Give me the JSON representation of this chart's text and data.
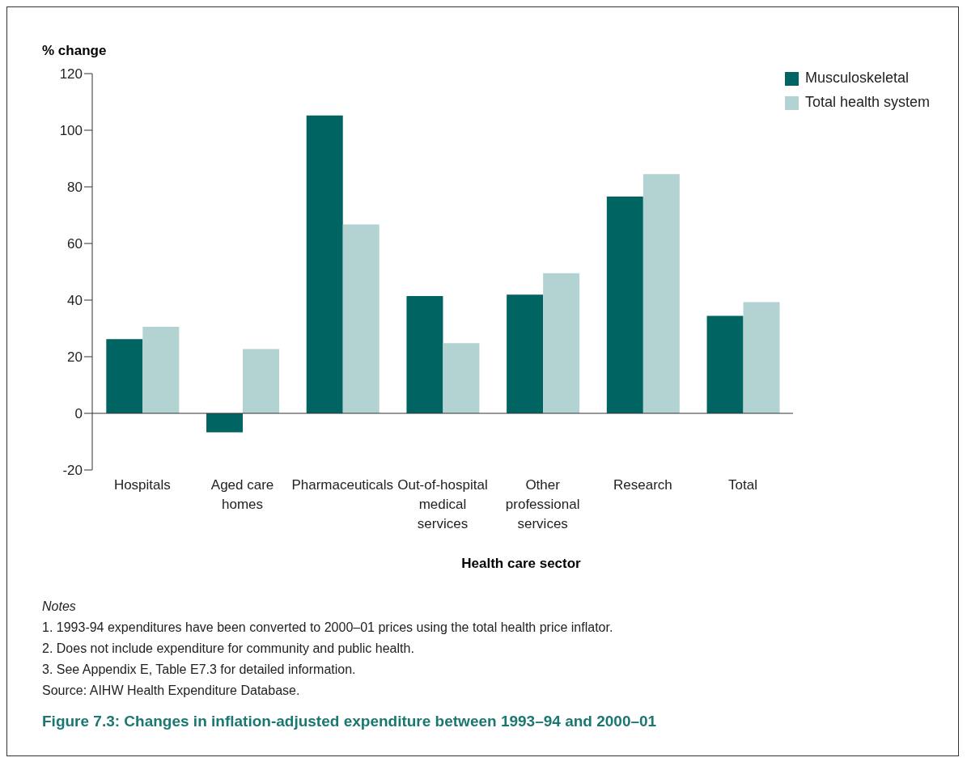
{
  "chart_data": {
    "type": "bar",
    "title": "Figure 7.3: Changes in inflation-adjusted expenditure between 1993–94 and 2000–01",
    "ylabel": "% change",
    "xlabel": "Health care sector",
    "categories": [
      "Hospitals",
      "Aged care homes",
      "Pharmaceuticals",
      "Out-of-hospital medical services",
      "Other professional services",
      "Research",
      "Total"
    ],
    "series": [
      {
        "name": "Musculoskeletal",
        "color": "#006462",
        "values": [
          26.2,
          -6.7,
          105.2,
          41.4,
          41.9,
          76.6,
          34.4
        ]
      },
      {
        "name": "Total health system",
        "color": "#b2d3d2",
        "values": [
          30.6,
          22.7,
          66.7,
          24.8,
          49.5,
          84.5,
          39.3
        ]
      }
    ],
    "ylim": [
      -20,
      120
    ],
    "yticks": [
      -20,
      0,
      20,
      40,
      60,
      80,
      100,
      120
    ],
    "legend": "top right",
    "annotations": [
      "Notes",
      "1.  1993-94 expenditures have been converted to 2000–01 prices using the total health price inflator.",
      "2.  Does not include expenditure for community and public health.",
      "3.  See Appendix E, Table E7.3 for detailed information.",
      "Source: AIHW Health Expenditure Database."
    ]
  }
}
